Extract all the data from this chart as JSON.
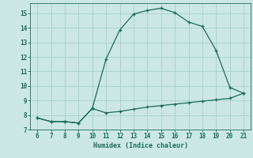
{
  "x_upper": [
    6,
    7,
    8,
    9,
    10,
    11,
    12,
    13,
    14,
    15,
    16,
    17,
    18,
    19,
    20,
    21
  ],
  "y_upper": [
    7.8,
    7.55,
    7.55,
    7.45,
    8.45,
    11.85,
    13.85,
    14.95,
    15.2,
    15.35,
    15.05,
    14.4,
    14.1,
    12.45,
    9.9,
    9.5
  ],
  "x_lower": [
    6,
    7,
    8,
    9,
    10,
    11,
    12,
    13,
    14,
    15,
    16,
    17,
    18,
    19,
    20,
    21
  ],
  "y_lower": [
    7.8,
    7.55,
    7.55,
    7.45,
    8.45,
    8.15,
    8.25,
    8.4,
    8.55,
    8.65,
    8.75,
    8.85,
    8.95,
    9.05,
    9.15,
    9.5
  ],
  "line_color": "#1a6b5a",
  "bg_color": "#cce8e4",
  "grid_color": "#aad4ce",
  "xlabel": "Humidex (Indice chaleur)",
  "ylim": [
    7,
    15.7
  ],
  "xlim": [
    5.5,
    21.5
  ],
  "yticks": [
    7,
    8,
    9,
    10,
    11,
    12,
    13,
    14,
    15
  ],
  "xticks": [
    6,
    7,
    8,
    9,
    10,
    11,
    12,
    13,
    14,
    15,
    16,
    17,
    18,
    19,
    20,
    21
  ],
  "font_color": "#1a6b5a"
}
